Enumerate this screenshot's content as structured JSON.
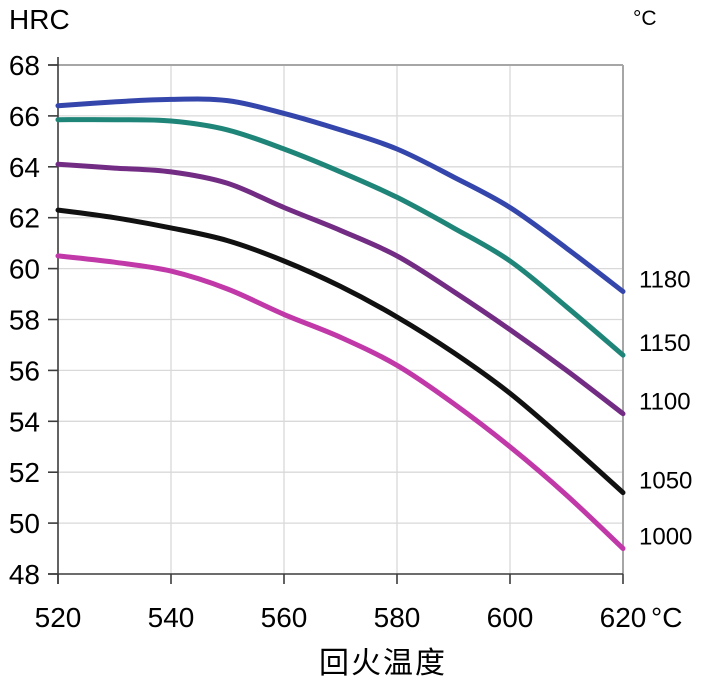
{
  "colors": {
    "background": "#ffffff",
    "grid": "#d9d9d9",
    "border": "#a6a6a6",
    "axis": "#3c3c3c",
    "text": "#000000"
  },
  "chart_data": {
    "type": "line",
    "title": "",
    "ylabel": "HRC",
    "right_axis_unit": "°C",
    "xlabel": "回火温度",
    "x_axis_unit": "°C",
    "xlim": [
      520,
      620
    ],
    "ylim": [
      48,
      68
    ],
    "x_ticks": [
      520,
      540,
      560,
      580,
      600,
      620
    ],
    "y_ticks": [
      68,
      66,
      64,
      62,
      60,
      58,
      56,
      54,
      52,
      50,
      48
    ],
    "grid": true,
    "legend_position": "right of curve endpoints",
    "x": [
      520,
      530,
      540,
      550,
      560,
      570,
      580,
      590,
      600,
      610,
      620
    ],
    "series": [
      {
        "name": "1180",
        "color": "#3446ab",
        "values": [
          66.4,
          66.55,
          66.65,
          66.6,
          66.1,
          65.45,
          64.7,
          63.6,
          62.4,
          60.8,
          59.1
        ]
      },
      {
        "name": "1150",
        "color": "#1f8578",
        "values": [
          65.85,
          65.85,
          65.8,
          65.45,
          64.7,
          63.8,
          62.8,
          61.6,
          60.3,
          58.5,
          56.6
        ]
      },
      {
        "name": "1100",
        "color": "#732c84",
        "values": [
          64.1,
          63.95,
          63.8,
          63.35,
          62.4,
          61.5,
          60.5,
          59.1,
          57.6,
          56.0,
          54.3
        ]
      },
      {
        "name": "1050",
        "color": "#111111",
        "values": [
          62.3,
          62.0,
          61.6,
          61.1,
          60.3,
          59.3,
          58.1,
          56.7,
          55.1,
          53.2,
          51.2
        ]
      },
      {
        "name": "1000",
        "color": "#c138a8",
        "values": [
          60.5,
          60.25,
          59.9,
          59.2,
          58.2,
          57.3,
          56.2,
          54.7,
          53.0,
          51.1,
          49.0
        ]
      }
    ]
  }
}
